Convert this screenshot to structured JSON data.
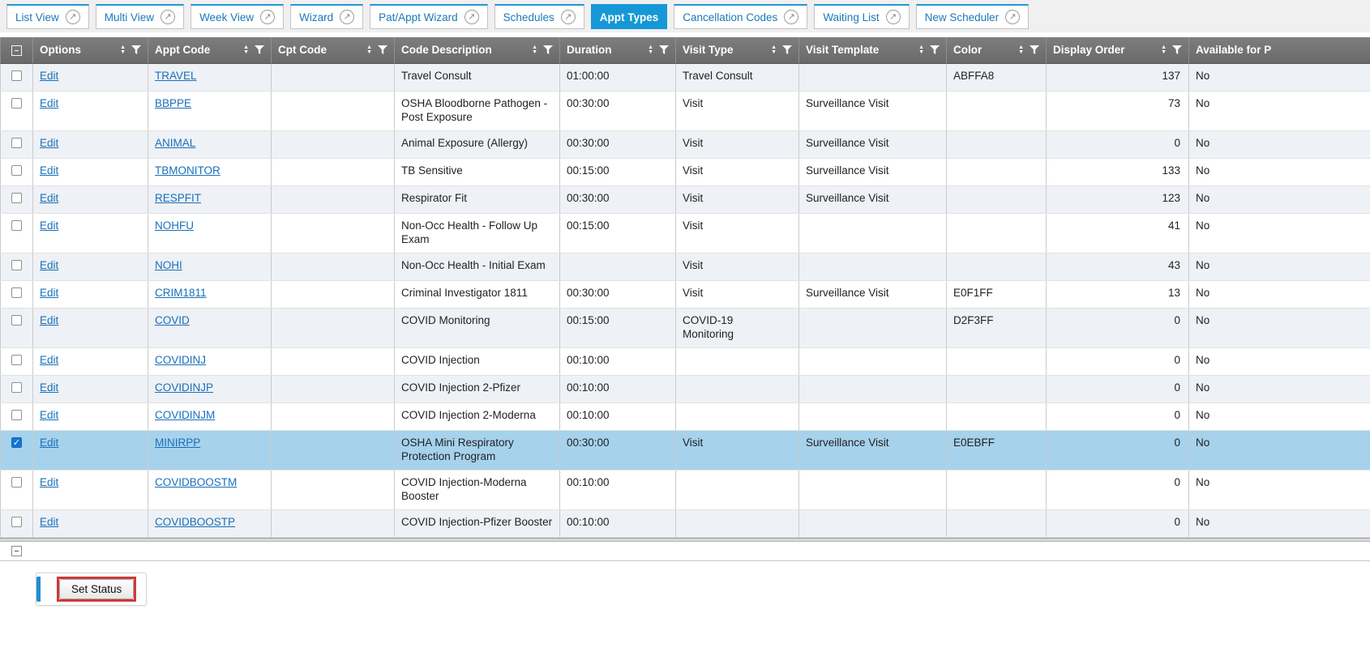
{
  "tabs": {
    "popout_icon": "open-new-window-icon",
    "items": [
      {
        "label": "List View",
        "active": false,
        "icon": true
      },
      {
        "label": "Multi View",
        "active": false,
        "icon": true
      },
      {
        "label": "Week View",
        "active": false,
        "icon": true
      },
      {
        "label": "Wizard",
        "active": false,
        "icon": true
      },
      {
        "label": "Pat/Appt Wizard",
        "active": false,
        "icon": true
      },
      {
        "label": "Schedules",
        "active": false,
        "icon": true
      },
      {
        "label": "Appt Types",
        "active": true,
        "icon": false
      },
      {
        "label": "Cancellation Codes",
        "active": false,
        "icon": true
      },
      {
        "label": "Waiting List",
        "active": false,
        "icon": true
      },
      {
        "label": "New Scheduler",
        "active": false,
        "icon": true
      }
    ]
  },
  "grid": {
    "edit_label": "Edit",
    "columns": [
      {
        "label": "",
        "type": "checkbox"
      },
      {
        "label": "Options"
      },
      {
        "label": "Appt Code"
      },
      {
        "label": "Cpt Code"
      },
      {
        "label": "Code Description"
      },
      {
        "label": "Duration"
      },
      {
        "label": "Visit Type"
      },
      {
        "label": "Visit Template"
      },
      {
        "label": "Color"
      },
      {
        "label": "Display Order"
      },
      {
        "label": "Available for P",
        "icons": false
      }
    ],
    "rows": [
      {
        "checked": false,
        "selected": false,
        "appt_code": "TRAVEL",
        "cpt_code": "",
        "description": "Travel Consult",
        "duration": "01:00:00",
        "visit_type": "Travel Consult",
        "visit_template": "",
        "color": "ABFFA8",
        "display_order": "137",
        "available": "No"
      },
      {
        "checked": false,
        "selected": false,
        "appt_code": "BBPPE",
        "cpt_code": "",
        "description": "OSHA Bloodborne Pathogen - Post Exposure",
        "duration": "00:30:00",
        "visit_type": "Visit",
        "visit_template": "Surveillance Visit",
        "color": "",
        "display_order": "73",
        "available": "No"
      },
      {
        "checked": false,
        "selected": false,
        "appt_code": "ANIMAL",
        "cpt_code": "",
        "description": "Animal Exposure (Allergy)",
        "duration": "00:30:00",
        "visit_type": "Visit",
        "visit_template": "Surveillance Visit",
        "color": "",
        "display_order": "0",
        "available": "No"
      },
      {
        "checked": false,
        "selected": false,
        "appt_code": "TBMONITOR",
        "cpt_code": "",
        "description": "TB Sensitive",
        "duration": "00:15:00",
        "visit_type": "Visit",
        "visit_template": "Surveillance Visit",
        "color": "",
        "display_order": "133",
        "available": "No"
      },
      {
        "checked": false,
        "selected": false,
        "appt_code": "RESPFIT",
        "cpt_code": "",
        "description": "Respirator Fit",
        "duration": "00:30:00",
        "visit_type": "Visit",
        "visit_template": "Surveillance Visit",
        "color": "",
        "display_order": "123",
        "available": "No"
      },
      {
        "checked": false,
        "selected": false,
        "appt_code": "NOHFU",
        "cpt_code": "",
        "description": "Non-Occ Health - Follow Up Exam",
        "duration": "00:15:00",
        "visit_type": "Visit",
        "visit_template": "",
        "color": "",
        "display_order": "41",
        "available": "No"
      },
      {
        "checked": false,
        "selected": false,
        "appt_code": "NOHI",
        "cpt_code": "",
        "description": "Non-Occ Health - Initial Exam",
        "duration": "",
        "visit_type": "Visit",
        "visit_template": "",
        "color": "",
        "display_order": "43",
        "available": "No"
      },
      {
        "checked": false,
        "selected": false,
        "appt_code": "CRIM1811",
        "cpt_code": "",
        "description": "Criminal Investigator 1811",
        "duration": "00:30:00",
        "visit_type": "Visit",
        "visit_template": "Surveillance Visit",
        "color": "E0F1FF",
        "display_order": "13",
        "available": "No"
      },
      {
        "checked": false,
        "selected": false,
        "appt_code": "COVID",
        "cpt_code": "",
        "description": "COVID Monitoring",
        "duration": "00:15:00",
        "visit_type": "COVID-19 Monitoring",
        "visit_template": "",
        "color": "D2F3FF",
        "display_order": "0",
        "available": "No"
      },
      {
        "checked": false,
        "selected": false,
        "appt_code": "COVIDINJ",
        "cpt_code": "",
        "description": "COVID Injection",
        "duration": "00:10:00",
        "visit_type": "",
        "visit_template": "",
        "color": "",
        "display_order": "0",
        "available": "No"
      },
      {
        "checked": false,
        "selected": false,
        "appt_code": "COVIDINJP",
        "cpt_code": "",
        "description": "COVID Injection 2-Pfizer",
        "duration": "00:10:00",
        "visit_type": "",
        "visit_template": "",
        "color": "",
        "display_order": "0",
        "available": "No"
      },
      {
        "checked": false,
        "selected": false,
        "appt_code": "COVIDINJM",
        "cpt_code": "",
        "description": "COVID Injection 2-Moderna",
        "duration": "00:10:00",
        "visit_type": "",
        "visit_template": "",
        "color": "",
        "display_order": "0",
        "available": "No"
      },
      {
        "checked": true,
        "selected": true,
        "appt_code": "MINIRPP",
        "cpt_code": "",
        "description": "OSHA Mini Respiratory Protection Program",
        "duration": "00:30:00",
        "visit_type": "Visit",
        "visit_template": "Surveillance Visit",
        "color": "E0EBFF",
        "display_order": "0",
        "available": "No"
      },
      {
        "checked": false,
        "selected": false,
        "appt_code": "COVIDBOOSTM",
        "cpt_code": "",
        "description": "COVID Injection-Moderna Booster",
        "duration": "00:10:00",
        "visit_type": "",
        "visit_template": "",
        "color": "",
        "display_order": "0",
        "available": "No"
      },
      {
        "checked": false,
        "selected": false,
        "appt_code": "COVIDBOOSTP",
        "cpt_code": "",
        "description": "COVID Injection-Pfizer Booster",
        "duration": "00:10:00",
        "visit_type": "",
        "visit_template": "",
        "color": "",
        "display_order": "0",
        "available": "No"
      }
    ]
  },
  "footer": {
    "set_status_label": "Set Status"
  },
  "ui_colors": {
    "active_tab_bg": "#1698d6",
    "tab_text": "#1b79b7",
    "header_bg": "#707070",
    "row_alt_bg": "#eef1f5",
    "selected_row_bg": "#a6d2ec",
    "link": "#1a6fba",
    "highlight_border": "#cf3a3a",
    "panel_accent": "#1e8fd2"
  }
}
